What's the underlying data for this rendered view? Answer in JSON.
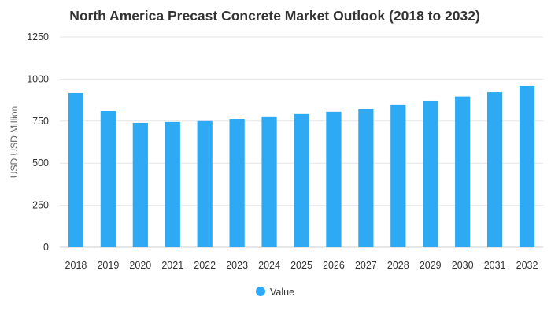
{
  "chart_data": {
    "type": "bar",
    "title": "North America Precast Concrete Market Outlook (2018 to 2032)",
    "xlabel": "",
    "ylabel": "USD USD Million",
    "ylim": [
      0,
      1250
    ],
    "yticks": [
      0,
      250,
      500,
      750,
      1000,
      1250
    ],
    "grid": true,
    "legend_position": "bottom",
    "categories": [
      "2018",
      "2019",
      "2020",
      "2021",
      "2022",
      "2023",
      "2024",
      "2025",
      "2026",
      "2027",
      "2028",
      "2029",
      "2030",
      "2031",
      "2032"
    ],
    "series": [
      {
        "name": "Value",
        "color": "#2eaaf5",
        "values": [
          918,
          810,
          740,
          745,
          750,
          763,
          778,
          792,
          806,
          820,
          848,
          871,
          896,
          922,
          960
        ]
      }
    ]
  }
}
